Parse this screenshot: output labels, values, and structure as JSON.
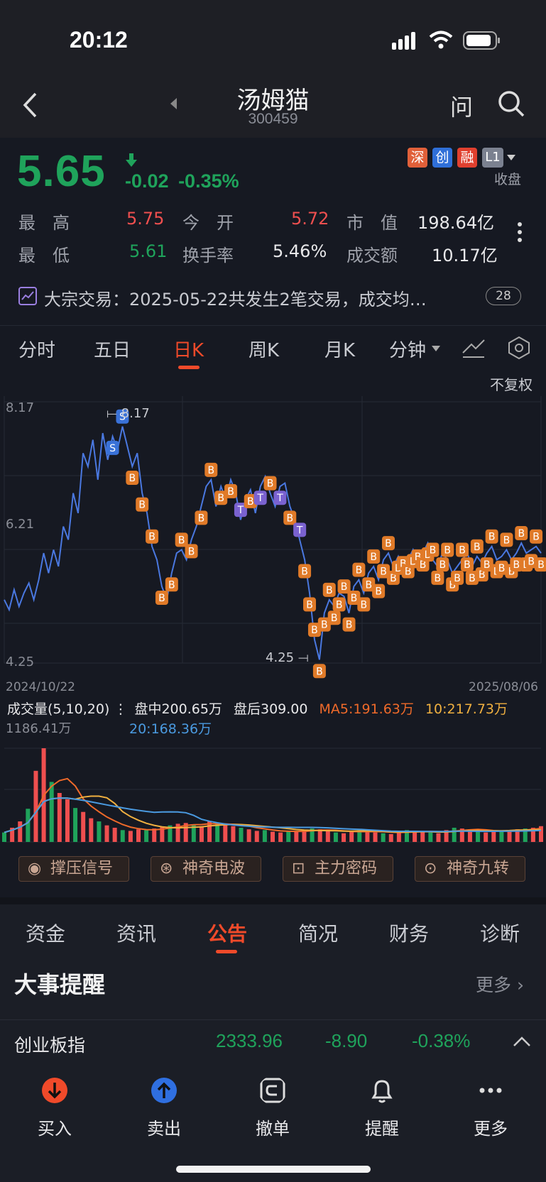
{
  "status": {
    "time": "20:12"
  },
  "header": {
    "title": "汤姆猫",
    "code": "300459",
    "ask_label": "问"
  },
  "quote": {
    "price": "5.65",
    "change": "-0.02",
    "change_pct": "-0.35%",
    "tags": [
      "深",
      "创",
      "融",
      "L1"
    ],
    "state": "收盘",
    "high_label": "最　高",
    "high": "5.75",
    "open_label": "今　开",
    "open": "5.72",
    "mktcap_label": "市　值",
    "mktcap": "198.64亿",
    "low_label": "最　低",
    "low": "5.61",
    "turnover_label": "换手率",
    "turnover": "5.46%",
    "amount_label": "成交额",
    "amount": "10.17亿"
  },
  "notice": {
    "text": "大宗交易：2025-05-22共发生2笔交易，成交均…",
    "badge": "28"
  },
  "chart_tabs": [
    "分时",
    "五日",
    "日K",
    "周K",
    "月K",
    "分钟"
  ],
  "chart_tab_active": "日K",
  "chart": {
    "adjust": "不复权",
    "y_top": "8.17",
    "y_mid": "6.21",
    "y_bot": "4.25",
    "max_label": "8.17",
    "min_label": "4.25",
    "date_start": "2024/10/22",
    "date_end": "2025/08/06"
  },
  "volume": {
    "title": "成交量(5,10,20)",
    "intraday": "盘中200.65万",
    "after": "盘后309.00",
    "ma5": "MA5:191.63万",
    "ma10": "10:217.73万",
    "ma20": "20:168.36万",
    "max": "1186.41万"
  },
  "signals": [
    "撑压信号",
    "神奇电波",
    "主力密码",
    "神奇九转"
  ],
  "info_tabs": [
    "资金",
    "资讯",
    "公告",
    "简况",
    "财务",
    "诊断"
  ],
  "info_tab_active": "公告",
  "events": {
    "title": "大事提醒",
    "more": "更多"
  },
  "index_bar": {
    "name": "创业板指",
    "value": "2333.96",
    "change": "-8.90",
    "change_pct": "-0.38%"
  },
  "bottom_nav": [
    "买入",
    "卖出",
    "撤单",
    "提醒",
    "更多"
  ],
  "colors": {
    "up": "#ef4f4f",
    "down": "#1fa35b",
    "accent": "#f04a2a",
    "line": "#4a78e0"
  },
  "chart_data": {
    "type": "line",
    "ylim": [
      4.25,
      8.17
    ],
    "x_start": "2024/10/22",
    "x_end": "2025/08/06",
    "price_series": [
      5.2,
      5.05,
      5.35,
      5.1,
      5.3,
      5.45,
      5.2,
      5.5,
      5.9,
      5.6,
      5.95,
      5.7,
      6.3,
      6.1,
      6.8,
      6.5,
      7.4,
      7.2,
      7.6,
      7.0,
      7.7,
      7.3,
      7.65,
      7.45,
      7.8,
      7.5,
      7.2,
      7.4,
      6.8,
      6.5,
      6.0,
      5.8,
      5.4,
      5.2,
      5.6,
      5.9,
      5.95,
      5.8,
      6.1,
      6.3,
      6.6,
      6.9,
      7.0,
      6.6,
      6.9,
      6.7,
      7.0,
      6.8,
      6.4,
      6.7,
      6.85,
      6.5,
      6.9,
      7.05,
      6.8,
      6.6,
      6.9,
      6.95,
      6.6,
      6.4,
      6.1,
      5.8,
      5.3,
      4.6,
      4.3,
      5.0,
      5.2,
      5.1,
      5.3,
      5.25,
      5.0,
      5.4,
      5.5,
      5.3,
      5.6,
      5.7,
      5.5,
      5.8,
      5.9,
      5.7,
      5.85,
      5.6,
      5.8,
      5.95,
      5.7,
      5.9,
      6.05,
      5.8,
      5.7,
      5.9,
      5.8,
      5.6,
      5.7,
      5.8,
      5.9,
      5.7,
      5.85,
      5.75,
      5.9,
      6.0,
      5.8,
      5.85,
      5.95,
      5.8,
      5.9,
      6.05,
      5.9,
      5.95,
      6.0,
      5.9
    ],
    "volume_series": [
      120,
      180,
      260,
      420,
      900,
      1186,
      760,
      620,
      540,
      430,
      380,
      300,
      260,
      210,
      180,
      150,
      140,
      160,
      150,
      170,
      190,
      210,
      230,
      240,
      220,
      200,
      260,
      240,
      220,
      200,
      180,
      160,
      140,
      150,
      130,
      120,
      140,
      130,
      150,
      170,
      160,
      140,
      120,
      110,
      130,
      150,
      140,
      120,
      110,
      100,
      130,
      150,
      140,
      130,
      120,
      110,
      150,
      180,
      170,
      160,
      140,
      120,
      130,
      140,
      150,
      160,
      170,
      180,
      200
    ]
  }
}
